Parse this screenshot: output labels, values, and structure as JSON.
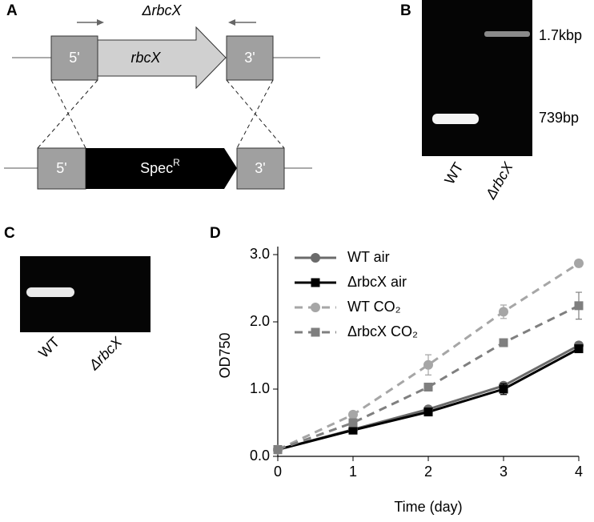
{
  "panel_a": {
    "letter": "A",
    "title": "ΔrbcX",
    "top": {
      "left": "5'",
      "gene": "rbcX",
      "right": "3'"
    },
    "bottom": {
      "left": "5'",
      "marker": "Spec",
      "marker_sup": "R",
      "right": "3'"
    }
  },
  "panel_b": {
    "letter": "B",
    "bands": [
      "1.7kbp",
      "739bp"
    ],
    "lanes": [
      "WT",
      "ΔrbcX"
    ]
  },
  "panel_c": {
    "letter": "C",
    "lanes": [
      "WT",
      "ΔrbcX"
    ]
  },
  "panel_d": {
    "letter": "D"
  },
  "chart_data": {
    "type": "line",
    "xlabel": "Time (day)",
    "ylabel": "OD750",
    "x": [
      0,
      1,
      2,
      3,
      4
    ],
    "xlim": [
      0,
      4
    ],
    "xticks": [
      0,
      1,
      2,
      3,
      4
    ],
    "ylim": [
      0,
      3
    ],
    "yticks": [
      {
        "value": 0,
        "label": "0.0"
      },
      {
        "value": 1,
        "label": "1.0"
      },
      {
        "value": 2,
        "label": "2.0"
      },
      {
        "value": 3,
        "label": "3.0"
      }
    ],
    "series": [
      {
        "name": "WT air",
        "color": "#6b6b6b",
        "linestyle": "solid",
        "marker": "circle",
        "values": [
          0.1,
          0.4,
          0.7,
          1.05,
          1.65
        ],
        "errors": [
          0.01,
          0.02,
          0.02,
          0.04,
          0.05
        ]
      },
      {
        "name": "ΔrbcX air",
        "color": "#000000",
        "linestyle": "solid",
        "marker": "square",
        "values": [
          0.1,
          0.39,
          0.66,
          1.0,
          1.6
        ],
        "errors": [
          0.01,
          0.02,
          0.02,
          0.08,
          0.04
        ]
      },
      {
        "name": "WT CO₂",
        "color": "#a6a6a6",
        "linestyle": "dashed",
        "marker": "circle",
        "values": [
          0.1,
          0.62,
          1.36,
          2.15,
          2.87
        ],
        "errors": [
          0.01,
          0.03,
          0.15,
          0.1,
          0.05
        ]
      },
      {
        "name": "ΔrbcX CO₂",
        "color": "#7f7f7f",
        "linestyle": "dashed",
        "marker": "square",
        "values": [
          0.1,
          0.5,
          1.03,
          1.69,
          2.24
        ],
        "errors": [
          0.01,
          0.02,
          0.03,
          0.03,
          0.2
        ]
      }
    ]
  }
}
